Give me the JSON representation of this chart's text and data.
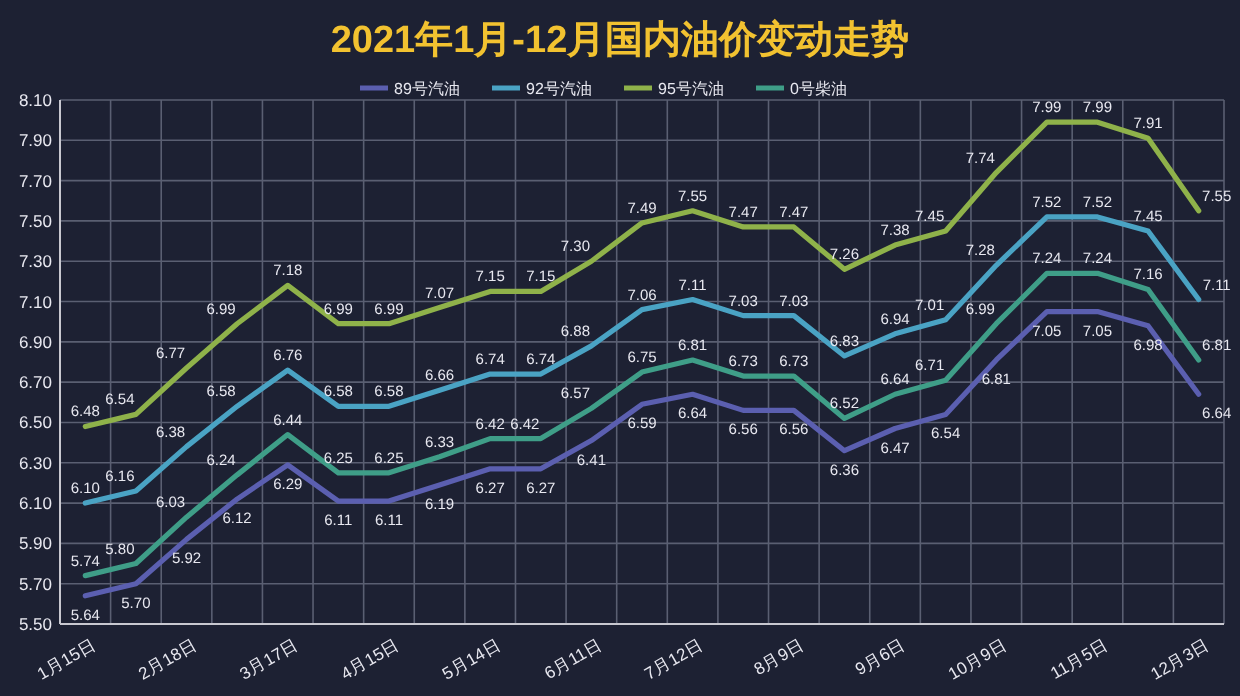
{
  "chart_data": {
    "type": "line",
    "title": "2021年1月-12月国内油价变动走势",
    "categories": [
      "1月15日",
      null,
      "2月18日",
      null,
      "3月17日",
      null,
      "4月15日",
      null,
      "5月14日",
      null,
      "6月11日",
      null,
      "7月12日",
      null,
      "8月9日",
      null,
      "9月6日",
      null,
      "10月9日",
      null,
      "11月5日",
      null,
      "12月3日"
    ],
    "series": [
      {
        "name": "89号汽油",
        "color": "#5b5fb0",
        "values": [
          5.64,
          5.7,
          5.92,
          6.12,
          6.29,
          6.11,
          6.11,
          6.19,
          6.27,
          6.27,
          6.41,
          6.59,
          6.64,
          6.56,
          6.56,
          6.36,
          6.47,
          6.54,
          6.81,
          7.05,
          7.05,
          6.98,
          6.64
        ],
        "value_labels": [
          "5.64",
          "5.70",
          "5.92",
          "6.12",
          "6.29",
          "6.11",
          "6.11",
          "6.19",
          "6.27",
          "6.27",
          "6.41",
          "6.59",
          "6.64",
          "6.56",
          "6.56",
          "6.36",
          "6.47",
          "6.54",
          "6.81",
          "7.05",
          "7.05",
          "6.98",
          "6.64"
        ]
      },
      {
        "name": "92号汽油",
        "color": "#4aa3c4",
        "values": [
          6.1,
          6.16,
          6.38,
          6.58,
          6.76,
          6.58,
          6.58,
          6.66,
          6.74,
          6.74,
          6.88,
          7.06,
          7.11,
          7.03,
          7.03,
          6.83,
          6.94,
          7.01,
          7.28,
          7.52,
          7.52,
          7.45,
          7.11
        ],
        "value_labels": [
          "6.10",
          "6.16",
          "6.38",
          "6.58",
          "6.76",
          "6.58",
          "6.58",
          "6.66",
          "6.74",
          "6.74",
          "6.88",
          "7.06",
          "7.11",
          "7.03",
          "7.03",
          "6.83",
          "6.94",
          "7.01",
          "7.28",
          "7.52",
          "7.52",
          "7.45",
          "7.11"
        ]
      },
      {
        "name": "95号汽油",
        "color": "#8fb24a",
        "values": [
          6.48,
          6.54,
          6.77,
          6.99,
          7.18,
          6.99,
          6.99,
          7.07,
          7.15,
          7.15,
          7.3,
          7.49,
          7.55,
          7.47,
          7.47,
          7.26,
          7.38,
          7.45,
          7.74,
          7.99,
          7.99,
          7.91,
          7.55
        ],
        "value_labels": [
          "6.48",
          "6.54",
          "6.77",
          "6.99",
          "7.18",
          "6.99",
          "6.99",
          "7.07",
          "7.15",
          "7.15",
          "7.30",
          "7.49",
          "7.55",
          "7.47",
          "7.47",
          "7.26",
          "7.38",
          "7.45",
          "7.74",
          "7.99",
          "7.99",
          "7.91",
          "7.55"
        ]
      },
      {
        "name": "0号柴油",
        "color": "#3f9e88",
        "values": [
          5.74,
          5.8,
          6.03,
          6.24,
          6.44,
          6.25,
          6.25,
          6.33,
          6.42,
          6.42,
          6.57,
          6.75,
          6.81,
          6.73,
          6.73,
          6.52,
          6.64,
          6.71,
          6.99,
          7.24,
          7.24,
          7.16,
          6.81
        ],
        "value_labels": [
          "5.74",
          "5.80",
          "6.03",
          "6.24",
          "6.44",
          "6.25",
          "6.25",
          "6.33",
          "6.42",
          "6.42",
          "6.57",
          "6.75",
          "6.81",
          "6.73",
          "6.73",
          "6.52",
          "6.64",
          "6.71",
          "6.99",
          "7.24",
          "7.24",
          "7.16",
          "6.81"
        ]
      }
    ],
    "ylim": [
      5.5,
      8.1
    ],
    "yticks": [
      {
        "value": 5.5,
        "label": "5.50"
      },
      {
        "value": 5.7,
        "label": "5.70"
      },
      {
        "value": 5.9,
        "label": "5.90"
      },
      {
        "value": 6.1,
        "label": "6.10"
      },
      {
        "value": 6.3,
        "label": "6.30"
      },
      {
        "value": 6.5,
        "label": "6.50"
      },
      {
        "value": 6.7,
        "label": "6.70"
      },
      {
        "value": 6.9,
        "label": "6.90"
      },
      {
        "value": 7.1,
        "label": "7.10"
      },
      {
        "value": 7.3,
        "label": "7.30"
      },
      {
        "value": 7.5,
        "label": "7.50"
      },
      {
        "value": 7.7,
        "label": "7.70"
      },
      {
        "value": 7.9,
        "label": "7.90"
      },
      {
        "value": 8.1,
        "label": "8.10"
      }
    ],
    "grid": true,
    "legend": "top",
    "marker": "none",
    "line_style": "solid"
  }
}
